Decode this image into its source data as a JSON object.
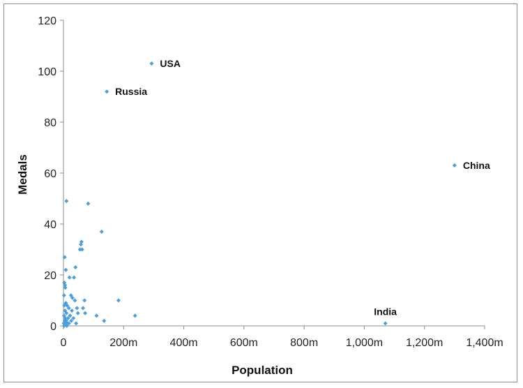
{
  "chart_data": {
    "type": "scatter",
    "title": "",
    "xlabel": "Population",
    "ylabel": "Medals",
    "xlim": [
      0,
      1400
    ],
    "ylim": [
      0,
      120
    ],
    "x_ticks": [
      {
        "value": 0,
        "label": "0"
      },
      {
        "value": 200,
        "label": "200m"
      },
      {
        "value": 400,
        "label": "400m"
      },
      {
        "value": 600,
        "label": "600m"
      },
      {
        "value": 800,
        "label": "800m"
      },
      {
        "value": 1000,
        "label": "1,000m"
      },
      {
        "value": 1200,
        "label": "1,200m"
      },
      {
        "value": 1400,
        "label": "1,400m"
      }
    ],
    "y_ticks": [
      {
        "value": 0,
        "label": "0"
      },
      {
        "value": 20,
        "label": "20"
      },
      {
        "value": 40,
        "label": "40"
      },
      {
        "value": 60,
        "label": "60"
      },
      {
        "value": 80,
        "label": "80"
      },
      {
        "value": 100,
        "label": "100"
      },
      {
        "value": 120,
        "label": "120"
      }
    ],
    "marker_color": "#4a9fdc",
    "labeled_points": [
      {
        "name": "USA",
        "x": 293,
        "y": 103
      },
      {
        "name": "Russia",
        "x": 144,
        "y": 92
      },
      {
        "name": "China",
        "x": 1300,
        "y": 63
      },
      {
        "name": "India",
        "x": 1070,
        "y": 1
      }
    ],
    "points": [
      {
        "x": 10,
        "y": 49
      },
      {
        "x": 82,
        "y": 48
      },
      {
        "x": 127,
        "y": 37
      },
      {
        "x": 60,
        "y": 33
      },
      {
        "x": 58,
        "y": 32
      },
      {
        "x": 55,
        "y": 30
      },
      {
        "x": 62,
        "y": 30
      },
      {
        "x": 4,
        "y": 27
      },
      {
        "x": 40,
        "y": 23
      },
      {
        "x": 8,
        "y": 22
      },
      {
        "x": 20,
        "y": 19
      },
      {
        "x": 35,
        "y": 19
      },
      {
        "x": 3,
        "y": 17
      },
      {
        "x": 5,
        "y": 16
      },
      {
        "x": 6,
        "y": 15
      },
      {
        "x": 2,
        "y": 12
      },
      {
        "x": 25,
        "y": 12
      },
      {
        "x": 30,
        "y": 11
      },
      {
        "x": 38,
        "y": 10
      },
      {
        "x": 70,
        "y": 10
      },
      {
        "x": 183,
        "y": 10
      },
      {
        "x": 8,
        "y": 9
      },
      {
        "x": 12,
        "y": 8
      },
      {
        "x": 3,
        "y": 8
      },
      {
        "x": 45,
        "y": 7
      },
      {
        "x": 65,
        "y": 7
      },
      {
        "x": 18,
        "y": 7
      },
      {
        "x": 28,
        "y": 6
      },
      {
        "x": 5,
        "y": 6
      },
      {
        "x": 10,
        "y": 5
      },
      {
        "x": 72,
        "y": 5
      },
      {
        "x": 48,
        "y": 5
      },
      {
        "x": 2,
        "y": 4
      },
      {
        "x": 22,
        "y": 4
      },
      {
        "x": 110,
        "y": 4
      },
      {
        "x": 238,
        "y": 4
      },
      {
        "x": 6,
        "y": 3
      },
      {
        "x": 15,
        "y": 3
      },
      {
        "x": 33,
        "y": 3
      },
      {
        "x": 4,
        "y": 2
      },
      {
        "x": 9,
        "y": 2
      },
      {
        "x": 26,
        "y": 2
      },
      {
        "x": 135,
        "y": 2
      },
      {
        "x": 1,
        "y": 1
      },
      {
        "x": 7,
        "y": 1
      },
      {
        "x": 13,
        "y": 1
      },
      {
        "x": 42,
        "y": 1
      },
      {
        "x": 3,
        "y": 1
      },
      {
        "x": 18,
        "y": 1
      },
      {
        "x": 2,
        "y": 0
      },
      {
        "x": 11,
        "y": 0
      }
    ]
  }
}
